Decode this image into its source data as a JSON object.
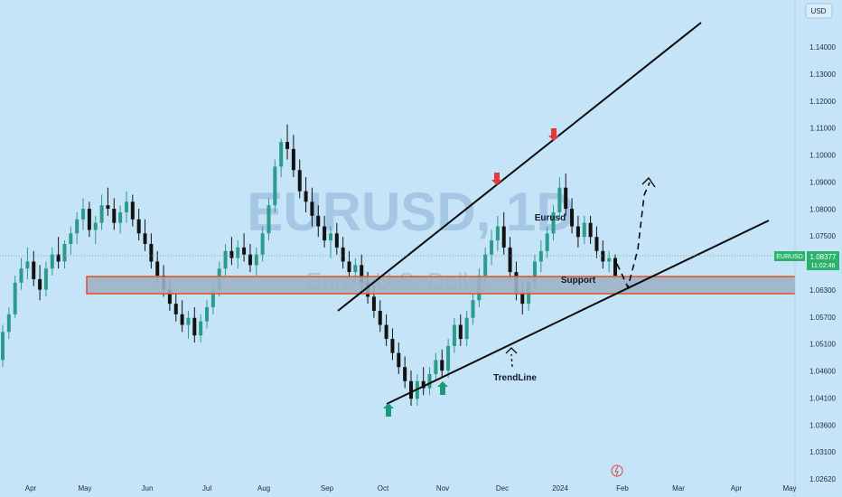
{
  "chart_data": {
    "type": "candlestick",
    "symbol": "EURUSD",
    "watermark_title": "EURUSD, 1D",
    "watermark_subtitle": "Euro / U.S. Dollar",
    "currency_label": "USD",
    "y_ticks": [
      "1.14000",
      "1.13000",
      "1.12000",
      "1.11000",
      "1.10000",
      "1.09000",
      "1.08000",
      "1.07500",
      "1.06900",
      "1.06300",
      "1.05700",
      "1.05100",
      "1.04600",
      "1.04100",
      "1.03600",
      "1.03100",
      "1.02620"
    ],
    "x_ticks": [
      "Apr",
      "May",
      "Jun",
      "Jul",
      "Aug",
      "Sep",
      "Oct",
      "Nov",
      "Dec",
      "2024",
      "Feb",
      "Mar",
      "Apr",
      "May"
    ],
    "last_price": "1.08377",
    "countdown": "11:02:46",
    "annotations": {
      "support": "Support",
      "trendline": "TrendLine",
      "eurusd": "Eurusd"
    },
    "colors": {
      "background": "#c6e4f7",
      "bull": "#2b9b8b",
      "bear": "#121212",
      "support_zone": "#9db0c7",
      "support_border": "#e0521f",
      "up_arrow": "#1a9a78",
      "down_arrow": "#e03a3a",
      "price_tag": "#2bb36c"
    },
    "series": [
      {
        "name": "EURUSD",
        "ohlc": [
          [
            1.06,
            1.07,
            1.058,
            1.068
          ],
          [
            1.068,
            1.075,
            1.066,
            1.073
          ],
          [
            1.073,
            1.084,
            1.072,
            1.082
          ],
          [
            1.082,
            1.089,
            1.08,
            1.086
          ],
          [
            1.086,
            1.092,
            1.083,
            1.088
          ],
          [
            1.088,
            1.091,
            1.081,
            1.083
          ],
          [
            1.083,
            1.087,
            1.077,
            1.08
          ],
          [
            1.08,
            1.088,
            1.078,
            1.086
          ],
          [
            1.086,
            1.092,
            1.084,
            1.09
          ],
          [
            1.09,
            1.095,
            1.086,
            1.088
          ],
          [
            1.088,
            1.094,
            1.086,
            1.093
          ],
          [
            1.093,
            1.098,
            1.09,
            1.096
          ],
          [
            1.096,
            1.102,
            1.093,
            1.1
          ],
          [
            1.1,
            1.106,
            1.097,
            1.103
          ],
          [
            1.103,
            1.105,
            1.095,
            1.097
          ],
          [
            1.097,
            1.101,
            1.093,
            1.099
          ],
          [
            1.099,
            1.107,
            1.097,
            1.104
          ],
          [
            1.104,
            1.109,
            1.101,
            1.103
          ],
          [
            1.103,
            1.106,
            1.097,
            1.099
          ],
          [
            1.099,
            1.104,
            1.096,
            1.102
          ],
          [
            1.102,
            1.108,
            1.099,
            1.105
          ],
          [
            1.105,
            1.107,
            1.098,
            1.1
          ],
          [
            1.1,
            1.103,
            1.094,
            1.096
          ],
          [
            1.096,
            1.1,
            1.091,
            1.093
          ],
          [
            1.093,
            1.096,
            1.086,
            1.088
          ],
          [
            1.088,
            1.091,
            1.082,
            1.084
          ],
          [
            1.084,
            1.087,
            1.078,
            1.08
          ],
          [
            1.08,
            1.083,
            1.074,
            1.076
          ],
          [
            1.076,
            1.079,
            1.071,
            1.073
          ],
          [
            1.073,
            1.077,
            1.068,
            1.07
          ],
          [
            1.07,
            1.074,
            1.066,
            1.072
          ],
          [
            1.072,
            1.075,
            1.065,
            1.067
          ],
          [
            1.067,
            1.073,
            1.065,
            1.071
          ],
          [
            1.071,
            1.077,
            1.069,
            1.075
          ],
          [
            1.075,
            1.082,
            1.073,
            1.08
          ],
          [
            1.08,
            1.088,
            1.078,
            1.086
          ],
          [
            1.086,
            1.093,
            1.084,
            1.091
          ],
          [
            1.091,
            1.095,
            1.087,
            1.089
          ],
          [
            1.089,
            1.094,
            1.086,
            1.092
          ],
          [
            1.092,
            1.096,
            1.088,
            1.09
          ],
          [
            1.09,
            1.093,
            1.085,
            1.087
          ],
          [
            1.087,
            1.092,
            1.084,
            1.09
          ],
          [
            1.09,
            1.098,
            1.088,
            1.096
          ],
          [
            1.096,
            1.106,
            1.094,
            1.104
          ],
          [
            1.104,
            1.117,
            1.102,
            1.115
          ],
          [
            1.115,
            1.123,
            1.112,
            1.122
          ],
          [
            1.122,
            1.127,
            1.117,
            1.12
          ],
          [
            1.12,
            1.124,
            1.112,
            1.114
          ],
          [
            1.114,
            1.117,
            1.106,
            1.108
          ],
          [
            1.108,
            1.112,
            1.102,
            1.105
          ],
          [
            1.105,
            1.109,
            1.098,
            1.101
          ],
          [
            1.101,
            1.104,
            1.095,
            1.098
          ],
          [
            1.098,
            1.101,
            1.092,
            1.094
          ],
          [
            1.094,
            1.098,
            1.089,
            1.096
          ],
          [
            1.096,
            1.099,
            1.09,
            1.092
          ],
          [
            1.092,
            1.095,
            1.086,
            1.088
          ],
          [
            1.088,
            1.091,
            1.083,
            1.085
          ],
          [
            1.085,
            1.089,
            1.082,
            1.087
          ],
          [
            1.087,
            1.09,
            1.08,
            1.082
          ],
          [
            1.082,
            1.085,
            1.076,
            1.078
          ],
          [
            1.078,
            1.081,
            1.072,
            1.074
          ],
          [
            1.074,
            1.077,
            1.068,
            1.07
          ],
          [
            1.07,
            1.073,
            1.064,
            1.066
          ],
          [
            1.066,
            1.069,
            1.06,
            1.062
          ],
          [
            1.062,
            1.065,
            1.056,
            1.058
          ],
          [
            1.058,
            1.061,
            1.052,
            1.054
          ],
          [
            1.054,
            1.057,
            1.047,
            1.049
          ],
          [
            1.049,
            1.056,
            1.047,
            1.054
          ],
          [
            1.054,
            1.058,
            1.05,
            1.052
          ],
          [
            1.052,
            1.058,
            1.05,
            1.056
          ],
          [
            1.056,
            1.062,
            1.054,
            1.06
          ],
          [
            1.06,
            1.063,
            1.055,
            1.057
          ],
          [
            1.057,
            1.066,
            1.055,
            1.064
          ],
          [
            1.064,
            1.072,
            1.062,
            1.07
          ],
          [
            1.07,
            1.073,
            1.064,
            1.066
          ],
          [
            1.066,
            1.074,
            1.064,
            1.072
          ],
          [
            1.072,
            1.079,
            1.07,
            1.077
          ],
          [
            1.077,
            1.086,
            1.075,
            1.084
          ],
          [
            1.084,
            1.092,
            1.082,
            1.09
          ],
          [
            1.09,
            1.097,
            1.087,
            1.094
          ],
          [
            1.094,
            1.101,
            1.091,
            1.098
          ],
          [
            1.098,
            1.102,
            1.09,
            1.092
          ],
          [
            1.092,
            1.095,
            1.083,
            1.085
          ],
          [
            1.085,
            1.088,
            1.077,
            1.079
          ],
          [
            1.079,
            1.082,
            1.073,
            1.076
          ],
          [
            1.076,
            1.084,
            1.074,
            1.082
          ],
          [
            1.082,
            1.09,
            1.08,
            1.088
          ],
          [
            1.088,
            1.094,
            1.085,
            1.091
          ],
          [
            1.091,
            1.098,
            1.089,
            1.096
          ],
          [
            1.096,
            1.104,
            1.094,
            1.102
          ],
          [
            1.102,
            1.112,
            1.1,
            1.109
          ],
          [
            1.109,
            1.113,
            1.101,
            1.103
          ],
          [
            1.103,
            1.106,
            1.096,
            1.098
          ],
          [
            1.098,
            1.101,
            1.092,
            1.095
          ],
          [
            1.095,
            1.101,
            1.093,
            1.099
          ],
          [
            1.099,
            1.101,
            1.093,
            1.095
          ],
          [
            1.095,
            1.098,
            1.089,
            1.091
          ],
          [
            1.091,
            1.094,
            1.086,
            1.088
          ],
          [
            1.088,
            1.091,
            1.085,
            1.089
          ],
          [
            1.089,
            1.09,
            1.083,
            1.084
          ]
        ]
      }
    ],
    "y_range": [
      1.0262,
      1.149
    ]
  }
}
